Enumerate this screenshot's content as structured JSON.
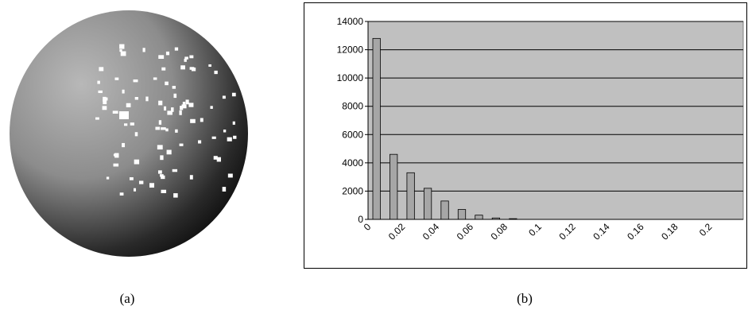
{
  "captions": [
    "(a)",
    "(b)"
  ],
  "chart_data": {
    "type": "bar",
    "categories": [
      "0",
      null,
      "0.02",
      null,
      "0.04",
      null,
      "0.06",
      null,
      "0.08",
      null,
      "0.1",
      null,
      "0.12",
      null,
      "0.14",
      null,
      "0.16",
      null,
      "0.18",
      null,
      "0.2",
      null
    ],
    "values": [
      12800,
      4600,
      3300,
      2200,
      1300,
      700,
      300,
      100,
      50,
      0,
      0,
      0,
      0,
      0,
      0,
      0,
      0,
      0,
      0,
      0,
      0,
      0
    ],
    "color": "#a6a6a6",
    "plot_background": "#c0c0c0",
    "ylim": [
      0,
      14000
    ],
    "yticks": [
      0,
      2000,
      4000,
      6000,
      8000,
      10000,
      12000,
      14000
    ],
    "grid": true
  }
}
